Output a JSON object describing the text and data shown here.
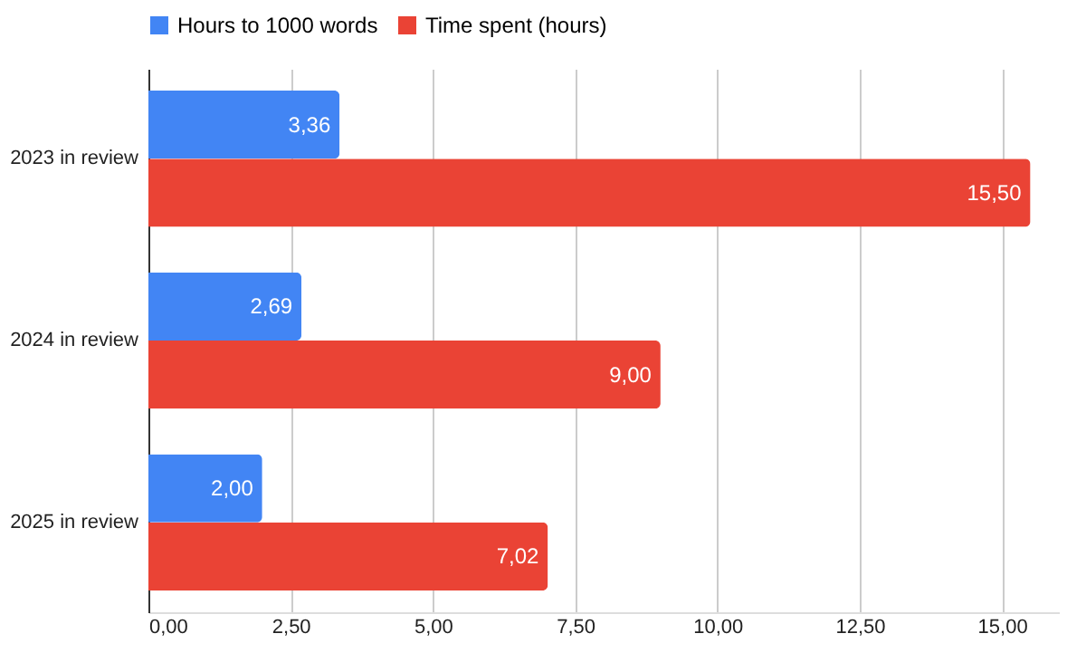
{
  "chart_data": {
    "type": "bar",
    "orientation": "horizontal",
    "categories": [
      "2023 in review",
      "2024 in review",
      "2025 in review"
    ],
    "series": [
      {
        "name": "Hours to 1000 words",
        "color": "#4285f4",
        "values": [
          3.36,
          2.69,
          2.0
        ],
        "value_labels": [
          "3,36",
          "2,69",
          "2,00"
        ]
      },
      {
        "name": "Time spent (hours)",
        "color": "#ea4335",
        "values": [
          15.5,
          9.0,
          7.02
        ],
        "value_labels": [
          "15,50",
          "9,00",
          "7,02"
        ]
      }
    ],
    "xlim": [
      0,
      16
    ],
    "xticks": [
      {
        "value": 0,
        "label": "0,00"
      },
      {
        "value": 2.5,
        "label": "2,50"
      },
      {
        "value": 5,
        "label": "5,00"
      },
      {
        "value": 7.5,
        "label": "7,50"
      },
      {
        "value": 10,
        "label": "10,00"
      },
      {
        "value": 12.5,
        "label": "12,50"
      },
      {
        "value": 15,
        "label": "15,00"
      }
    ],
    "grid": "x",
    "legend": "top"
  }
}
